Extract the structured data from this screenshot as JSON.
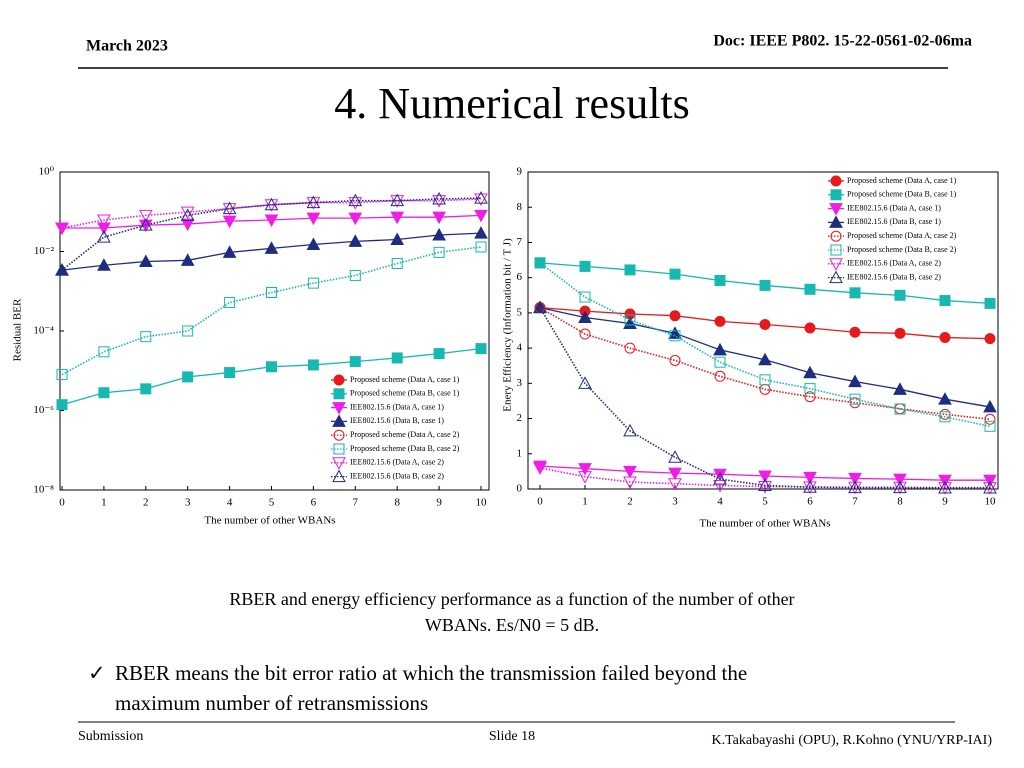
{
  "header": {
    "date": "March 2023",
    "doc": "Doc: IEEE P802. 15-22-0561-02-06ma"
  },
  "title": "4. Numerical results",
  "chart_data": [
    {
      "type": "line",
      "x": [
        0,
        1,
        2,
        3,
        4,
        5,
        6,
        7,
        8,
        9,
        10
      ],
      "xlabel": "The number of other WBANs",
      "ylabel": "Residual BER",
      "xlim": [
        0,
        10
      ],
      "xticks": [
        0,
        1,
        2,
        3,
        4,
        5,
        6,
        7,
        8,
        9,
        10
      ],
      "ylim": [
        1e-08,
        1
      ],
      "log_y": true,
      "yticks": [
        {
          "value": 1,
          "label": "10⁰"
        },
        {
          "value": 0.01,
          "label": "10⁻²"
        },
        {
          "value": 0.0001,
          "label": "10⁻⁴"
        },
        {
          "value": 1e-06,
          "label": "10⁻⁶"
        },
        {
          "value": 1e-08,
          "label": "10⁻⁸"
        }
      ],
      "legend": "lower right",
      "series": [
        {
          "name": "Proposed scheme (Data A, case 1)",
          "color": "#e8191e",
          "marker": "circle",
          "filled": true,
          "dotted": false,
          "values": [
            null,
            null,
            null,
            null,
            null,
            null,
            null,
            null,
            null,
            null,
            null
          ]
        },
        {
          "name": "Proposed scheme (Data B, case 1)",
          "color": "#17b8b0",
          "marker": "square",
          "filled": true,
          "dotted": false,
          "values": [
            1.4e-06,
            2.8e-06,
            3.5e-06,
            7e-06,
            9e-06,
            1.26e-05,
            1.4e-05,
            1.7e-05,
            2.1e-05,
            2.7e-05,
            3.6e-05
          ]
        },
        {
          "name": "IEE802.15.6 (Data A, case 1)",
          "color": "#ee1ee6",
          "marker": "triangle-down",
          "filled": true,
          "dotted": false,
          "values": [
            0.039,
            0.039,
            0.046,
            0.049,
            0.058,
            0.062,
            0.069,
            0.069,
            0.073,
            0.073,
            0.081
          ]
        },
        {
          "name": "IEE802.15.6 (Data B, case 1)",
          "color": "#1f2d80",
          "marker": "triangle-up",
          "filled": true,
          "dotted": false,
          "values": [
            0.0034,
            0.0045,
            0.0056,
            0.006,
            0.0095,
            0.012,
            0.015,
            0.018,
            0.02,
            0.026,
            0.029
          ]
        },
        {
          "name": "Proposed scheme (Data A, case 2)",
          "color": "#e8191e",
          "marker": "circle",
          "filled": false,
          "dotted": true,
          "values": [
            null,
            null,
            null,
            null,
            null,
            null,
            null,
            null,
            null,
            null,
            null
          ]
        },
        {
          "name": "Proposed scheme (Data B, case 2)",
          "color": "#17b8b0",
          "marker": "square",
          "filled": false,
          "dotted": true,
          "values": [
            8e-06,
            3e-05,
            7.2e-05,
            0.0001,
            0.00052,
            0.00093,
            0.0016,
            0.0025,
            0.005,
            0.0095,
            0.013
          ]
        },
        {
          "name": "IEE802.15.6 (Data A, case 2)",
          "color": "#ee1ee6",
          "marker": "triangle-down",
          "filled": false,
          "dotted": true,
          "values": [
            0.039,
            0.062,
            0.081,
            0.098,
            0.12,
            0.15,
            0.17,
            0.17,
            0.19,
            0.19,
            0.21
          ]
        },
        {
          "name": "IEE802.15.6 (Data B, case 2)",
          "color": "#1f2d80",
          "marker": "triangle-up",
          "filled": false,
          "dotted": true,
          "values": [
            0.0034,
            0.023,
            0.046,
            0.081,
            0.12,
            0.15,
            0.17,
            0.19,
            0.19,
            0.21,
            0.22
          ]
        }
      ]
    },
    {
      "type": "line",
      "x": [
        0,
        1,
        2,
        3,
        4,
        5,
        6,
        7,
        8,
        9,
        10
      ],
      "xlabel": "The number of other WBANs",
      "ylabel": "Enery Efficiency (Information bit / T J)",
      "xlim": [
        0,
        10
      ],
      "xticks": [
        0,
        1,
        2,
        3,
        4,
        5,
        6,
        7,
        8,
        9,
        10
      ],
      "ylim": [
        0,
        9
      ],
      "yticks": [
        0,
        1,
        2,
        3,
        4,
        5,
        6,
        7,
        8,
        9
      ],
      "legend": "upper right",
      "series": [
        {
          "name": "Proposed scheme (Data A, case 1)",
          "color": "#e8191e",
          "marker": "circle",
          "filled": true,
          "dotted": false,
          "values": [
            5.15,
            5.05,
            4.97,
            4.92,
            4.76,
            4.67,
            4.57,
            4.45,
            4.42,
            4.3,
            4.27
          ]
        },
        {
          "name": "Proposed scheme (Data B, case 1)",
          "color": "#17b8b0",
          "marker": "square",
          "filled": true,
          "dotted": false,
          "values": [
            6.42,
            6.32,
            6.22,
            6.1,
            5.92,
            5.78,
            5.67,
            5.57,
            5.5,
            5.35,
            5.27
          ]
        },
        {
          "name": "IEE802.15.6 (Data A, case 1)",
          "color": "#ee1ee6",
          "marker": "triangle-down",
          "filled": true,
          "dotted": false,
          "values": [
            0.65,
            0.58,
            0.5,
            0.45,
            0.42,
            0.37,
            0.33,
            0.3,
            0.28,
            0.25,
            0.25
          ]
        },
        {
          "name": "IEE802.15.6 (Data B, case 1)",
          "color": "#1f2d80",
          "marker": "triangle-up",
          "filled": true,
          "dotted": false,
          "values": [
            5.15,
            4.87,
            4.7,
            4.42,
            3.95,
            3.67,
            3.3,
            3.05,
            2.83,
            2.55,
            2.33
          ]
        },
        {
          "name": "Proposed scheme (Data A, case 2)",
          "color": "#e8191e",
          "marker": "circle",
          "filled": false,
          "dotted": true,
          "values": [
            5.15,
            4.4,
            4.0,
            3.65,
            3.2,
            2.83,
            2.62,
            2.45,
            2.28,
            2.12,
            1.98
          ]
        },
        {
          "name": "Proposed scheme (Data B, case 2)",
          "color": "#17b8b0",
          "marker": "square",
          "filled": false,
          "dotted": true,
          "values": [
            6.42,
            5.45,
            4.8,
            4.35,
            3.6,
            3.1,
            2.85,
            2.55,
            2.27,
            2.05,
            1.78
          ]
        },
        {
          "name": "IEE802.15.6 (Data A, case 2)",
          "color": "#ee1ee6",
          "marker": "triangle-down",
          "filled": false,
          "dotted": true,
          "values": [
            0.6,
            0.35,
            0.2,
            0.15,
            0.1,
            0.07,
            0.06,
            0.05,
            0.05,
            0.04,
            0.04
          ]
        },
        {
          "name": "IEE802.15.6 (Data B, case 2)",
          "color": "#1f2d80",
          "marker": "triangle-up",
          "filled": false,
          "dotted": true,
          "values": [
            5.15,
            3.0,
            1.65,
            0.9,
            0.28,
            0.1,
            0.05,
            0.04,
            0.04,
            0.03,
            0.03
          ]
        }
      ]
    }
  ],
  "caption": [
    "RBER and energy efficiency performance as a function of the number of other",
    "WBANs. Es/N0 = 5 dB."
  ],
  "bullet": {
    "marker": "✓",
    "lines": [
      "RBER means the bit error ratio at which the transmission failed beyond the",
      "maximum number of retransmissions"
    ]
  },
  "footer": {
    "left": "Submission",
    "center": "Slide 18",
    "right": "K.Takabayashi (OPU), R.Kohno (YNU/YRP-IAI)"
  }
}
